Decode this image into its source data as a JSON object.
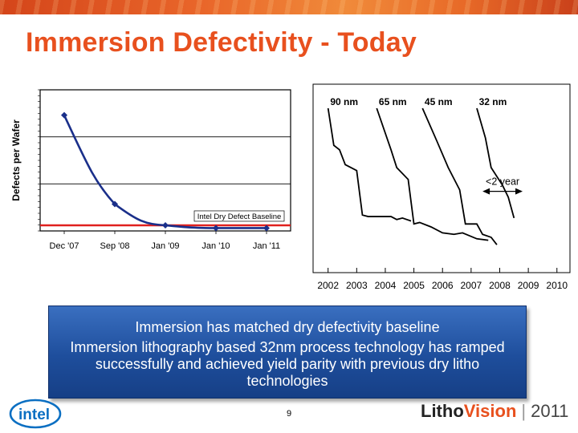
{
  "slide": {
    "title": "Immersion Defectivity - Today",
    "page_number": "9",
    "callout": {
      "line1": "Immersion has matched dry defectivity baseline",
      "line2": "Immersion lithography based 32nm process technology has ramped successfully and achieved yield parity with previous dry litho technologies"
    },
    "footer": {
      "logo_text": "intel",
      "brand_litho": "Litho",
      "brand_vision": "Vision",
      "brand_separator": "|",
      "brand_year": "2011"
    }
  },
  "chart_data": [
    {
      "type": "line",
      "ylabel": "Defects per Wafer",
      "categories": [
        "Dec '07",
        "Sep '08",
        "Jan '09",
        "Jan '10",
        "Jan '11"
      ],
      "series": [
        {
          "values": [
            0.82,
            0.19,
            0.04,
            0.02,
            0.02
          ],
          "color": "#1a2f8a"
        }
      ],
      "baseline": {
        "label": "Intel Dry Defect Baseline",
        "value": 0.04,
        "color": "#e0201e"
      },
      "ylim": [
        0,
        1
      ],
      "grid": true
    },
    {
      "type": "line",
      "xlabel": "",
      "categories": [
        "2002",
        "2003",
        "2004",
        "2005",
        "2006",
        "2007",
        "2008",
        "2009",
        "2010"
      ],
      "series": [
        {
          "name": "90 nm",
          "points": [
            [
              2001.8,
              1.0
            ],
            [
              2002.0,
              0.75
            ],
            [
              2002.2,
              0.72
            ],
            [
              2002.4,
              0.62
            ],
            [
              2002.8,
              0.58
            ],
            [
              2003.0,
              0.28
            ],
            [
              2003.2,
              0.27
            ],
            [
              2004.0,
              0.27
            ],
            [
              2004.2,
              0.25
            ],
            [
              2004.4,
              0.26
            ],
            [
              2004.7,
              0.24
            ]
          ]
        },
        {
          "name": "65 nm",
          "points": [
            [
              2003.5,
              1.0
            ],
            [
              2004.0,
              0.72
            ],
            [
              2004.2,
              0.6
            ],
            [
              2004.6,
              0.52
            ],
            [
              2004.8,
              0.22
            ],
            [
              2005.0,
              0.23
            ],
            [
              2005.4,
              0.2
            ],
            [
              2005.8,
              0.16
            ],
            [
              2006.2,
              0.15
            ],
            [
              2006.5,
              0.16
            ],
            [
              2007.0,
              0.12
            ],
            [
              2007.4,
              0.11
            ]
          ]
        },
        {
          "name": "45 nm",
          "points": [
            [
              2005.1,
              1.0
            ],
            [
              2005.6,
              0.78
            ],
            [
              2006.0,
              0.6
            ],
            [
              2006.4,
              0.45
            ],
            [
              2006.6,
              0.22
            ],
            [
              2007.0,
              0.22
            ],
            [
              2007.2,
              0.15
            ],
            [
              2007.5,
              0.13
            ],
            [
              2007.7,
              0.08
            ]
          ]
        },
        {
          "name": "32 nm",
          "points": [
            [
              2007.0,
              1.0
            ],
            [
              2007.3,
              0.8
            ],
            [
              2007.5,
              0.6
            ],
            [
              2007.9,
              0.48
            ],
            [
              2008.1,
              0.4
            ],
            [
              2008.3,
              0.26
            ]
          ]
        }
      ],
      "annotation": {
        "label": "<2 year",
        "from": 2007.2,
        "to": 2008.6
      }
    }
  ]
}
